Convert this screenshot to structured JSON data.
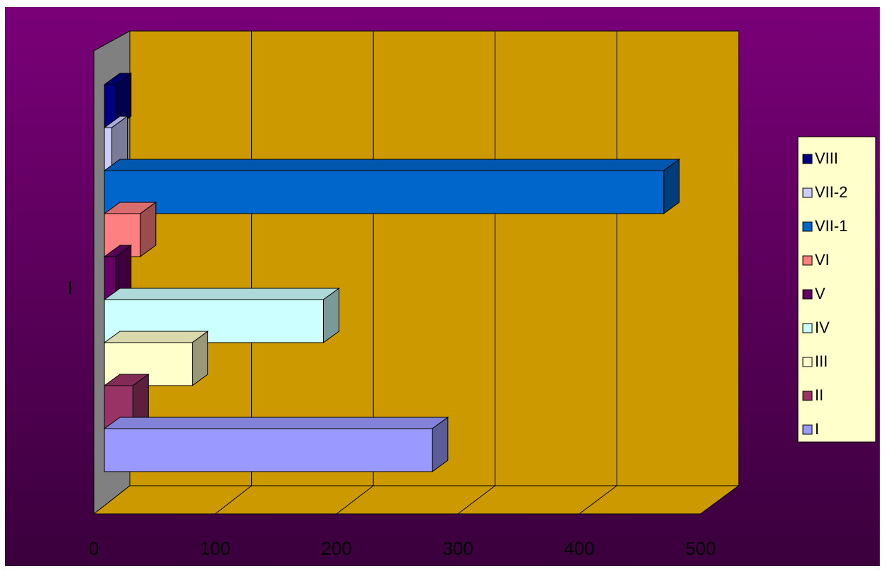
{
  "chart_data": {
    "type": "bar",
    "orientation": "horizontal",
    "style": "3d",
    "categories": [
      "I"
    ],
    "series": [
      {
        "name": "I",
        "values": [
          265
        ],
        "color": "#9999FF"
      },
      {
        "name": "II",
        "values": [
          23
        ],
        "color": "#993366"
      },
      {
        "name": "III",
        "values": [
          71
        ],
        "color": "#FFFFCC"
      },
      {
        "name": "IV",
        "values": [
          177
        ],
        "color": "#CCFFFF"
      },
      {
        "name": "V",
        "values": [
          9
        ],
        "color": "#660066"
      },
      {
        "name": "VI",
        "values": [
          29
        ],
        "color": "#FF8080"
      },
      {
        "name": "VII-1",
        "values": [
          452
        ],
        "color": "#0066CC"
      },
      {
        "name": "VII-2",
        "values": [
          6
        ],
        "color": "#CCCCFF"
      },
      {
        "name": "VIII",
        "values": [
          9
        ],
        "color": "#000080"
      }
    ],
    "xlim": [
      0,
      500
    ],
    "xticks": [
      "0",
      "100",
      "200",
      "300",
      "400",
      "500"
    ],
    "grid": true,
    "legend_position": "right",
    "colors": {
      "background_top": "#7A0078",
      "background_bottom": "#3A003C",
      "plot_wall": "#CC9900",
      "side_wall": "#808080",
      "legend_bg": "#FFFFCC",
      "tick_label": "#000000"
    }
  }
}
